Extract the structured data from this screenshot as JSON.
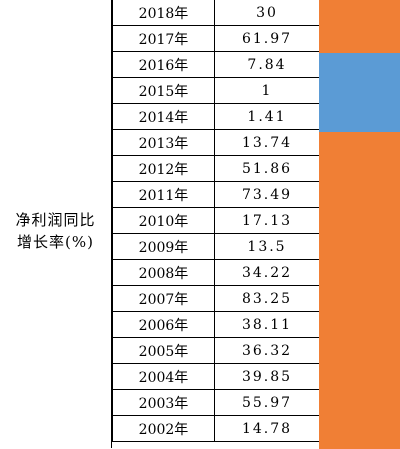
{
  "label_lines": [
    "净利润同比",
    "增长率(%)"
  ],
  "rows": [
    {
      "year": "2018年",
      "value": "30"
    },
    {
      "year": "2017年",
      "value": "61.97"
    },
    {
      "year": "2016年",
      "value": "7.84"
    },
    {
      "year": "2015年",
      "value": "1"
    },
    {
      "year": "2014年",
      "value": "1.41"
    },
    {
      "year": "2013年",
      "value": "13.74"
    },
    {
      "year": "2012年",
      "value": "51.86"
    },
    {
      "year": "2011年",
      "value": "73.49"
    },
    {
      "year": "2010年",
      "value": "17.13"
    },
    {
      "year": "2009年",
      "value": "13.5"
    },
    {
      "year": "2008年",
      "value": "34.22"
    },
    {
      "year": "2007年",
      "value": "83.25"
    },
    {
      "year": "2006年",
      "value": "38.11"
    },
    {
      "year": "2005年",
      "value": "36.32"
    },
    {
      "year": "2004年",
      "value": "39.85"
    },
    {
      "year": "2003年",
      "value": "55.97"
    },
    {
      "year": "2002年",
      "value": "14.78"
    }
  ],
  "colors": {
    "strip_orange": "#f07f35",
    "strip_blue": "#5b9bd5"
  },
  "strip_segments": [
    {
      "color_key": "strip_orange",
      "row_start": 0,
      "row_count": 2
    },
    {
      "color_key": "strip_blue",
      "row_start": 2,
      "row_count": 3
    },
    {
      "color_key": "strip_orange",
      "row_start": 5,
      "row_count": 12
    }
  ]
}
